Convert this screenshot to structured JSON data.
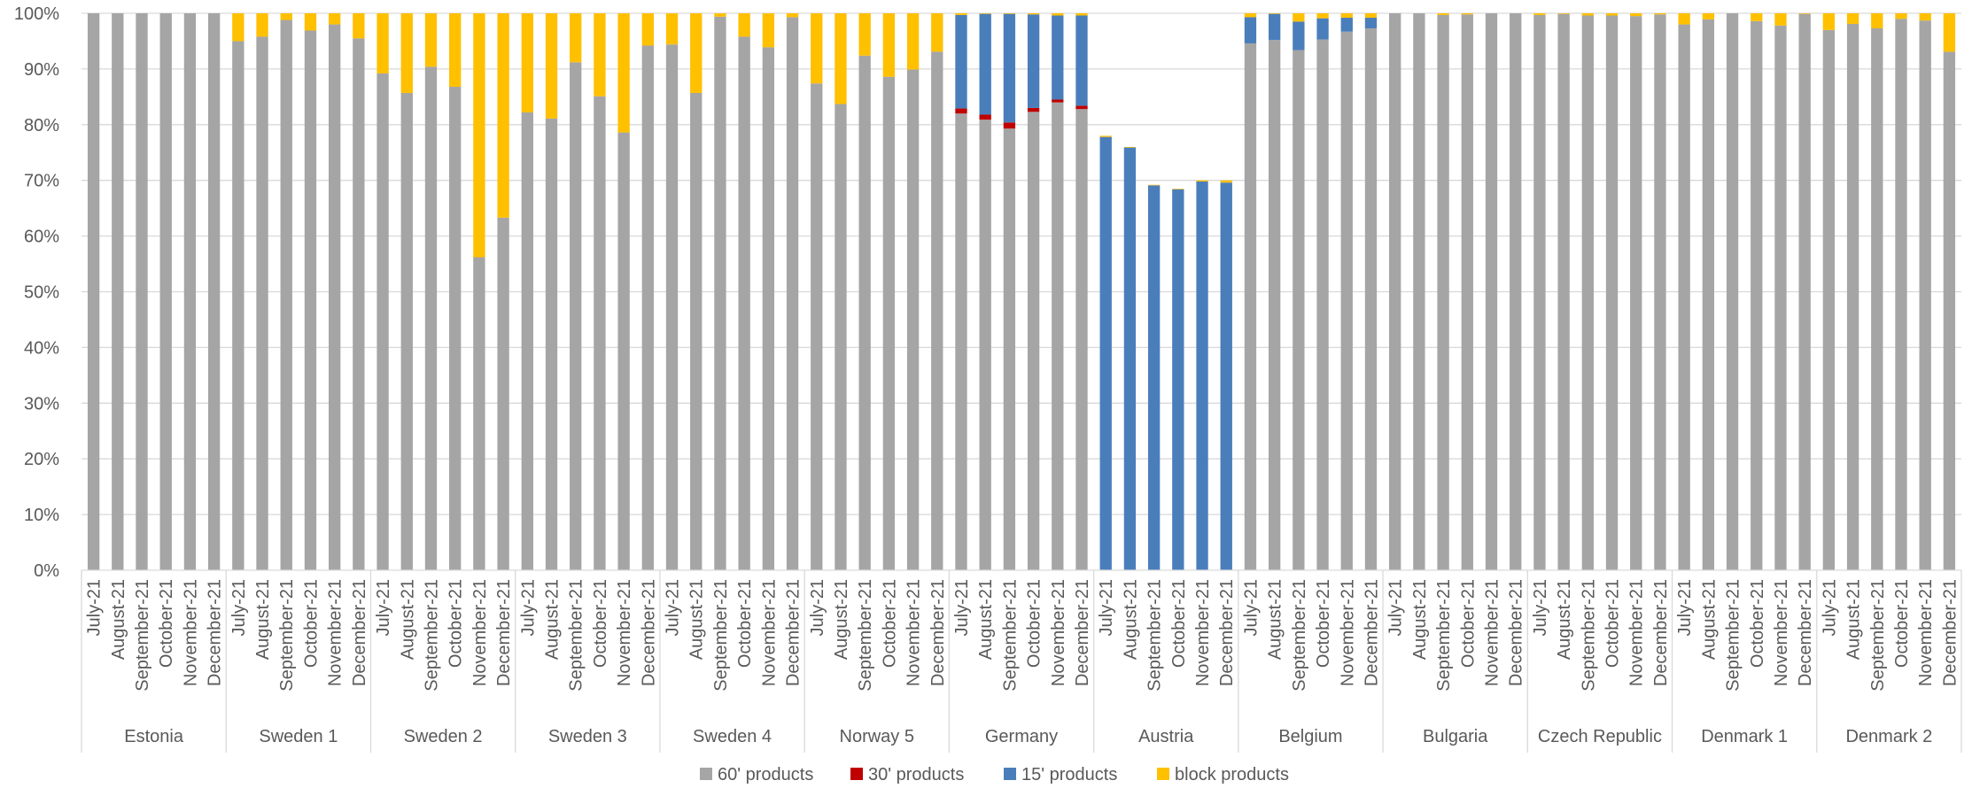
{
  "chart_data": {
    "type": "bar",
    "stacked": true,
    "percent_scale": true,
    "title": "",
    "xlabel": "",
    "ylabel": "",
    "ylim": [
      0,
      100
    ],
    "y_ticks": [
      "0%",
      "10%",
      "20%",
      "30%",
      "40%",
      "50%",
      "60%",
      "70%",
      "80%",
      "90%",
      "100%"
    ],
    "grid": true,
    "legend_position": "bottom",
    "months": [
      "July-21",
      "August-21",
      "September-21",
      "October-21",
      "November-21",
      "December-21"
    ],
    "groups": [
      "Estonia",
      "Sweden 1",
      "Sweden 2",
      "Sweden 3",
      "Sweden 4",
      "Norway 5",
      "Germany",
      "Austria",
      "Belgium",
      "Bulgaria",
      "Czech Republic",
      "Denmark 1",
      "Denmark 2"
    ],
    "series": [
      {
        "name": "60' products",
        "color": "#a5a5a5",
        "values": [
          100,
          100,
          100,
          100,
          100,
          100,
          95,
          95.8,
          98.8,
          96.9,
          98,
          95.5,
          89.2,
          85.7,
          90.4,
          86.8,
          56.2,
          63.3,
          82.2,
          81.1,
          91.2,
          85.1,
          78.6,
          94.2,
          94.4,
          85.7,
          99.4,
          95.8,
          93.9,
          99.3,
          87.4,
          83.7,
          92.4,
          88.6,
          89.9,
          93.1,
          82,
          80.9,
          79.3,
          82.3,
          84,
          82.8,
          0,
          0,
          0,
          0,
          0,
          0,
          94.6,
          95.2,
          93.4,
          95.3,
          96.7,
          97.3,
          100,
          100,
          99.7,
          99.8,
          100,
          100,
          99.7,
          99.9,
          99.6,
          99.6,
          99.5,
          99.8,
          98,
          98.9,
          100,
          98.6,
          97.8,
          99.9,
          97,
          98.1,
          97.3,
          99,
          98.7,
          93.1
        ]
      },
      {
        "name": "30' products",
        "color": "#c00000",
        "values": [
          0,
          0,
          0,
          0,
          0,
          0,
          0,
          0,
          0,
          0,
          0,
          0,
          0,
          0,
          0,
          0,
          0,
          0,
          0,
          0,
          0,
          0,
          0,
          0,
          0,
          0,
          0,
          0,
          0,
          0,
          0,
          0,
          0,
          0,
          0,
          0,
          0.9,
          0.9,
          1.1,
          0.7,
          0.5,
          0.6,
          0,
          0,
          0,
          0,
          0,
          0,
          0,
          0,
          0,
          0,
          0,
          0,
          0,
          0,
          0,
          0,
          0,
          0,
          0,
          0,
          0,
          0,
          0,
          0,
          0,
          0,
          0,
          0,
          0,
          0,
          0,
          0,
          0,
          0,
          0,
          0
        ]
      },
      {
        "name": "15' products",
        "color": "#4a7ebb",
        "values": [
          0,
          0,
          0,
          0,
          0,
          0,
          0,
          0,
          0,
          0,
          0,
          0,
          0,
          0,
          0,
          0,
          0,
          0,
          0,
          0,
          0,
          0,
          0,
          0,
          0,
          0,
          0,
          0,
          0,
          0,
          0,
          0,
          0,
          0,
          0,
          0,
          16.8,
          18.1,
          19.5,
          16.8,
          15.1,
          16.2,
          77.8,
          75.9,
          69.1,
          68.4,
          69.8,
          69.6,
          4.7,
          4.7,
          5.1,
          3.8,
          2.5,
          1.9,
          0,
          0,
          0,
          0,
          0,
          0,
          0,
          0,
          0,
          0,
          0,
          0,
          0,
          0,
          0,
          0,
          0,
          0,
          0,
          0,
          0,
          0,
          0,
          0
        ]
      },
      {
        "name": "block products",
        "color": "#ffc000",
        "values": [
          0,
          0,
          0,
          0,
          0,
          0,
          5,
          4.2,
          1.2,
          3.1,
          2,
          4.5,
          10.8,
          14.3,
          9.6,
          13.2,
          43.8,
          36.7,
          17.8,
          18.9,
          8.8,
          14.9,
          21.4,
          5.8,
          5.6,
          14.3,
          0.6,
          4.2,
          6.1,
          0.7,
          12.6,
          16.3,
          7.6,
          11.4,
          10.1,
          6.9,
          0.3,
          0.1,
          0.1,
          0.2,
          0.4,
          0.4,
          0.2,
          0.1,
          0.1,
          0.1,
          0.2,
          0.4,
          0.7,
          0.1,
          1.5,
          0.9,
          0.8,
          0.8,
          0,
          0,
          0.3,
          0.2,
          0,
          0,
          0.3,
          0.1,
          0.4,
          0.4,
          0.5,
          0.2,
          2,
          1.1,
          0,
          1.4,
          2.2,
          0.1,
          3,
          1.9,
          2.7,
          1,
          1.3,
          6.9
        ]
      }
    ]
  }
}
